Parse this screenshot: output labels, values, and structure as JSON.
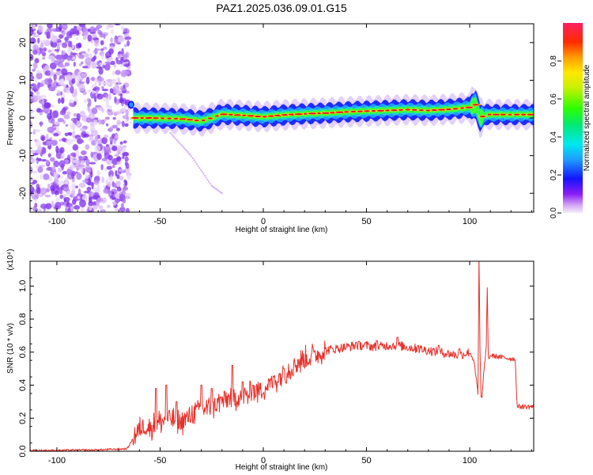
{
  "title": "PAZ1.2025.036.09.01.G15",
  "colors": {
    "snr_line": "#e8302a",
    "band_core": "#e8102a",
    "band_mid": "#22d3c8",
    "band_outer": "#1e2bff",
    "scatter": "#8a3cf0"
  },
  "chart_data": [
    {
      "type": "heatmap",
      "xlabel": "Height of straight line (km)",
      "ylabel": "Frequency (Hz)",
      "xlim": [
        -113,
        131
      ],
      "ylim": [
        -25,
        25
      ],
      "xticks": [
        -100,
        -50,
        0,
        50,
        100
      ],
      "yticks": [
        -20,
        -10,
        0,
        10,
        20
      ],
      "colorbar": {
        "label": "Normalized spectral amplitude",
        "range": [
          0.0,
          1.0
        ],
        "ticks": [
          "0.0",
          "0.2",
          "0.4",
          "0.6",
          "0.8"
        ],
        "tick_values": [
          0.0,
          0.2,
          0.4,
          0.6,
          0.8
        ]
      },
      "ridge": {
        "x": [
          -63,
          -55,
          -40,
          -30,
          -25,
          -20,
          -10,
          0,
          10,
          20,
          30,
          40,
          50,
          60,
          70,
          80,
          90,
          100,
          103,
          105,
          108,
          120,
          131
        ],
        "frequency": [
          0.0,
          0.0,
          -0.2,
          -0.8,
          0.0,
          1.0,
          0.7,
          0.3,
          0.8,
          1.1,
          1.3,
          1.6,
          1.8,
          2.0,
          2.2,
          2.0,
          2.3,
          2.8,
          3.5,
          0.0,
          0.9,
          0.9,
          0.9
        ]
      },
      "noise_region_x": [
        -113,
        -65
      ],
      "faint_trace": {
        "x": [
          -45,
          -35,
          -25,
          -20
        ],
        "frequency": [
          -4,
          -10,
          -18,
          -20
        ]
      }
    },
    {
      "type": "line",
      "xlabel": "Height of straight line (km)",
      "ylabel": "SNR (10 * v/v)",
      "y_multiplier": "(x10⁴)",
      "xlim": [
        -113,
        131
      ],
      "ylim": [
        0,
        1.15
      ],
      "xticks": [
        -100,
        -50,
        0,
        50,
        100
      ],
      "yticks": [
        "0.0",
        "0.2",
        "0.4",
        "0.6",
        "0.8",
        "1.0"
      ],
      "ytick_values": [
        0.0,
        0.2,
        0.4,
        0.6,
        0.8,
        1.0
      ],
      "series": [
        {
          "x": [
            -113,
            -100,
            -80,
            -66,
            -62,
            -58,
            -55,
            -50,
            -45,
            -40,
            -35,
            -30,
            -25,
            -20,
            -15,
            -10,
            -5,
            0,
            5,
            10,
            15,
            20,
            25,
            30,
            35,
            40,
            45,
            50,
            55,
            60,
            65,
            70,
            75,
            80,
            85,
            90,
            95,
            100,
            102,
            103,
            104,
            104.5,
            105,
            105.5,
            106,
            107,
            108,
            108.5,
            109,
            110,
            115,
            120,
            122,
            123,
            125,
            131
          ],
          "y": [
            0.005,
            0.005,
            0.008,
            0.015,
            0.1,
            0.16,
            0.14,
            0.18,
            0.2,
            0.17,
            0.22,
            0.26,
            0.26,
            0.31,
            0.32,
            0.33,
            0.35,
            0.38,
            0.42,
            0.47,
            0.52,
            0.56,
            0.58,
            0.61,
            0.62,
            0.63,
            0.64,
            0.64,
            0.63,
            0.64,
            0.64,
            0.63,
            0.62,
            0.61,
            0.6,
            0.59,
            0.58,
            0.6,
            0.55,
            0.45,
            0.35,
            1.18,
            0.6,
            0.32,
            0.34,
            0.5,
            0.62,
            1.0,
            0.56,
            0.58,
            0.57,
            0.56,
            0.56,
            0.27,
            0.27,
            0.27
          ]
        }
      ],
      "spikes": [
        {
          "x": [
            -52,
            -47,
            -42,
            -30,
            -25,
            -15,
            -10,
            -5,
            5,
            10,
            15,
            25,
            30,
            45,
            55,
            65,
            75,
            85,
            95
          ],
          "y": [
            0.38,
            0.4,
            0.3,
            0.4,
            0.38,
            0.52,
            0.42,
            0.4,
            0.45,
            0.5,
            0.54,
            0.6,
            0.62,
            0.66,
            0.67,
            0.69,
            0.64,
            0.64,
            0.62
          ]
        }
      ]
    }
  ]
}
